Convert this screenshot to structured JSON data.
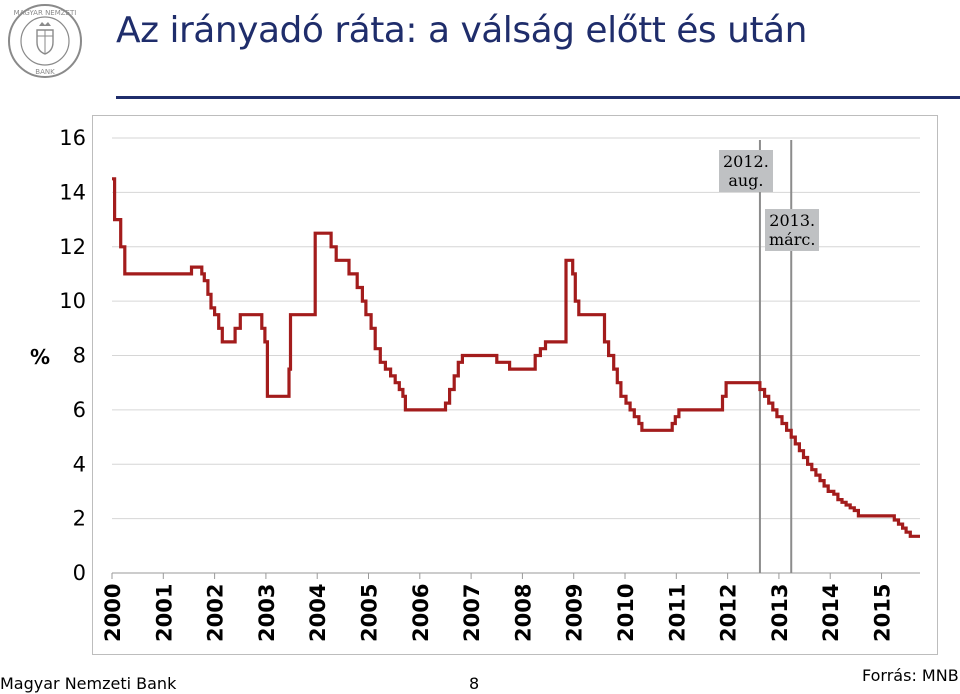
{
  "header": {
    "title": "Az irányadó ráta: a válság előtt és után"
  },
  "logo": {
    "name": "mnb-seal-icon",
    "lettering": "MAGYAR NEMZETI BANK",
    "color": "#8a8a8a"
  },
  "footer": {
    "organization": "Magyar Nemzeti Bank",
    "page_number": "8",
    "source": "Forrás: MNB"
  },
  "annotations": [
    {
      "line1": "2012.",
      "line2": "aug."
    },
    {
      "line1": "2013.",
      "line2": "márc."
    }
  ],
  "chart_data": {
    "type": "line",
    "title": "",
    "xlabel": "",
    "ylabel": "%",
    "xlim": [
      2000.0,
      2015.75
    ],
    "ylim": [
      0,
      16
    ],
    "yticks": [
      "0",
      "2",
      "4",
      "6",
      "8",
      "10",
      "12",
      "14",
      "16"
    ],
    "xticks": [
      "2000",
      "2001",
      "2002",
      "2003",
      "2004",
      "2005",
      "2006",
      "2007",
      "2008",
      "2009",
      "2010",
      "2011",
      "2012",
      "2013",
      "2014",
      "2015"
    ],
    "grid": "horizontal",
    "legend": "none",
    "line_color": "#a31c1c",
    "vertical_markers": [
      {
        "x": 2012.63,
        "label": "2012. aug."
      },
      {
        "x": 2013.24,
        "label": "2013. márc."
      }
    ],
    "series": [
      {
        "step": true,
        "points": [
          [
            2000.0,
            14.5
          ],
          [
            2000.05,
            13.0
          ],
          [
            2000.17,
            12.0
          ],
          [
            2000.25,
            11.0
          ],
          [
            2001.55,
            11.25
          ],
          [
            2001.75,
            11.0
          ],
          [
            2001.8,
            10.75
          ],
          [
            2001.87,
            10.25
          ],
          [
            2001.93,
            9.75
          ],
          [
            2002.0,
            9.5
          ],
          [
            2002.08,
            9.0
          ],
          [
            2002.15,
            8.5
          ],
          [
            2002.4,
            9.0
          ],
          [
            2002.5,
            9.5
          ],
          [
            2002.92,
            9.0
          ],
          [
            2002.98,
            8.5
          ],
          [
            2003.03,
            6.5
          ],
          [
            2003.45,
            7.5
          ],
          [
            2003.48,
            9.5
          ],
          [
            2003.96,
            12.5
          ],
          [
            2004.27,
            12.0
          ],
          [
            2004.37,
            11.5
          ],
          [
            2004.62,
            11.0
          ],
          [
            2004.78,
            10.5
          ],
          [
            2004.88,
            10.0
          ],
          [
            2004.95,
            9.5
          ],
          [
            2005.05,
            9.0
          ],
          [
            2005.13,
            8.25
          ],
          [
            2005.23,
            7.75
          ],
          [
            2005.33,
            7.5
          ],
          [
            2005.43,
            7.25
          ],
          [
            2005.52,
            7.0
          ],
          [
            2005.6,
            6.75
          ],
          [
            2005.67,
            6.5
          ],
          [
            2005.72,
            6.0
          ],
          [
            2006.5,
            6.25
          ],
          [
            2006.58,
            6.75
          ],
          [
            2006.67,
            7.25
          ],
          [
            2006.75,
            7.75
          ],
          [
            2006.83,
            8.0
          ],
          [
            2007.5,
            7.75
          ],
          [
            2007.75,
            7.5
          ],
          [
            2008.25,
            8.0
          ],
          [
            2008.35,
            8.25
          ],
          [
            2008.45,
            8.5
          ],
          [
            2008.85,
            11.5
          ],
          [
            2008.98,
            11.0
          ],
          [
            2009.03,
            10.0
          ],
          [
            2009.1,
            9.5
          ],
          [
            2009.6,
            8.5
          ],
          [
            2009.68,
            8.0
          ],
          [
            2009.78,
            7.5
          ],
          [
            2009.85,
            7.0
          ],
          [
            2009.92,
            6.5
          ],
          [
            2010.02,
            6.25
          ],
          [
            2010.1,
            6.0
          ],
          [
            2010.18,
            5.75
          ],
          [
            2010.27,
            5.5
          ],
          [
            2010.33,
            5.25
          ],
          [
            2010.92,
            5.5
          ],
          [
            2010.98,
            5.75
          ],
          [
            2011.05,
            6.0
          ],
          [
            2011.9,
            6.5
          ],
          [
            2011.97,
            7.0
          ],
          [
            2012.63,
            6.75
          ],
          [
            2012.72,
            6.5
          ],
          [
            2012.8,
            6.25
          ],
          [
            2012.88,
            6.0
          ],
          [
            2012.96,
            5.75
          ],
          [
            2013.06,
            5.5
          ],
          [
            2013.15,
            5.25
          ],
          [
            2013.24,
            5.0
          ],
          [
            2013.32,
            4.75
          ],
          [
            2013.4,
            4.5
          ],
          [
            2013.48,
            4.25
          ],
          [
            2013.56,
            4.0
          ],
          [
            2013.64,
            3.8
          ],
          [
            2013.72,
            3.6
          ],
          [
            2013.8,
            3.4
          ],
          [
            2013.88,
            3.2
          ],
          [
            2013.96,
            3.0
          ],
          [
            2014.07,
            2.9
          ],
          [
            2014.15,
            2.7
          ],
          [
            2014.23,
            2.6
          ],
          [
            2014.31,
            2.5
          ],
          [
            2014.39,
            2.4
          ],
          [
            2014.47,
            2.3
          ],
          [
            2014.55,
            2.1
          ],
          [
            2015.25,
            1.95
          ],
          [
            2015.33,
            1.8
          ],
          [
            2015.41,
            1.65
          ],
          [
            2015.48,
            1.5
          ],
          [
            2015.56,
            1.35
          ],
          [
            2015.75,
            1.35
          ]
        ]
      }
    ]
  }
}
